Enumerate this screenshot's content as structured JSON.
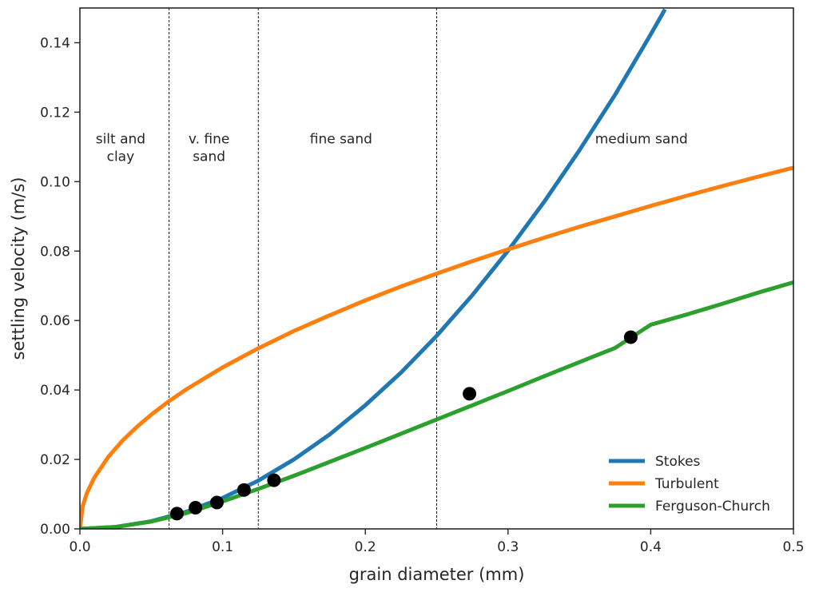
{
  "chart_data": {
    "type": "line",
    "title": "",
    "xlabel": "grain diameter (mm)",
    "ylabel": "settling velocity (m/s)",
    "xlim": [
      0.0,
      0.5
    ],
    "ylim": [
      0.0,
      0.15
    ],
    "x_ticks": [
      "0.0",
      "0.1",
      "0.2",
      "0.3",
      "0.4",
      "0.5"
    ],
    "y_ticks": [
      "0.00",
      "0.02",
      "0.04",
      "0.06",
      "0.08",
      "0.10",
      "0.12",
      "0.14"
    ],
    "grid": false,
    "legend_position": "bottom-right",
    "region_boundaries": [
      0.0625,
      0.125,
      0.25
    ],
    "regions": [
      {
        "lines": [
          "silt and",
          "clay"
        ],
        "x": 0.0285,
        "y": 0.111
      },
      {
        "lines": [
          "v. fine",
          "sand"
        ],
        "x": 0.0905,
        "y": 0.111
      },
      {
        "lines": [
          "fine sand"
        ],
        "x": 0.183,
        "y": 0.111
      },
      {
        "lines": [
          "medium sand"
        ],
        "x": 0.3935,
        "y": 0.111
      }
    ],
    "series": [
      {
        "name": "Stokes",
        "color": "#1f77b4",
        "x": [
          0.0,
          0.025,
          0.05,
          0.075,
          0.1,
          0.125,
          0.15,
          0.175,
          0.2,
          0.225,
          0.25,
          0.275,
          0.3,
          0.325,
          0.35,
          0.375,
          0.4,
          0.41
        ],
        "y": [
          0.0,
          0.00055,
          0.0022,
          0.005,
          0.0089,
          0.0139,
          0.02,
          0.0272,
          0.0356,
          0.045,
          0.0556,
          0.0673,
          0.0801,
          0.094,
          0.109,
          0.125,
          0.1424,
          0.1496
        ]
      },
      {
        "name": "Turbulent",
        "color": "#ff7f0e",
        "x": [
          0.0,
          0.002,
          0.005,
          0.01,
          0.02,
          0.03,
          0.04,
          0.05,
          0.0625,
          0.075,
          0.1,
          0.125,
          0.15,
          0.175,
          0.2,
          0.225,
          0.25,
          0.275,
          0.3,
          0.325,
          0.35,
          0.375,
          0.4,
          0.425,
          0.45,
          0.475,
          0.5
        ],
        "y": [
          0.0,
          0.0066,
          0.0104,
          0.0147,
          0.0208,
          0.0255,
          0.0294,
          0.0329,
          0.0368,
          0.0403,
          0.0465,
          0.052,
          0.057,
          0.0615,
          0.0658,
          0.0698,
          0.0735,
          0.0771,
          0.0805,
          0.0838,
          0.087,
          0.09,
          0.093,
          0.0959,
          0.0987,
          0.1014,
          0.104
        ]
      },
      {
        "name": "Ferguson-Church",
        "color": "#2ca02c",
        "x": [
          0.0,
          0.025,
          0.05,
          0.075,
          0.1,
          0.125,
          0.15,
          0.175,
          0.2,
          0.225,
          0.25,
          0.275,
          0.3,
          0.325,
          0.35,
          0.375,
          0.4,
          0.425,
          0.45,
          0.475,
          0.5
        ],
        "y": [
          0.0,
          0.00055,
          0.0021,
          0.0046,
          0.0079,
          0.0115,
          0.0153,
          0.0193,
          0.0233,
          0.0274,
          0.0315,
          0.0356,
          0.0397,
          0.0439,
          0.048,
          0.0521,
          0.0588,
          0.0617,
          0.0648,
          0.068,
          0.071
        ]
      }
    ],
    "points": {
      "name": "",
      "color": "#000000",
      "x": [
        0.068,
        0.081,
        0.096,
        0.115,
        0.136,
        0.273,
        0.386
      ],
      "y": [
        0.0044,
        0.0061,
        0.0076,
        0.0112,
        0.014,
        0.0389,
        0.0552
      ]
    }
  }
}
